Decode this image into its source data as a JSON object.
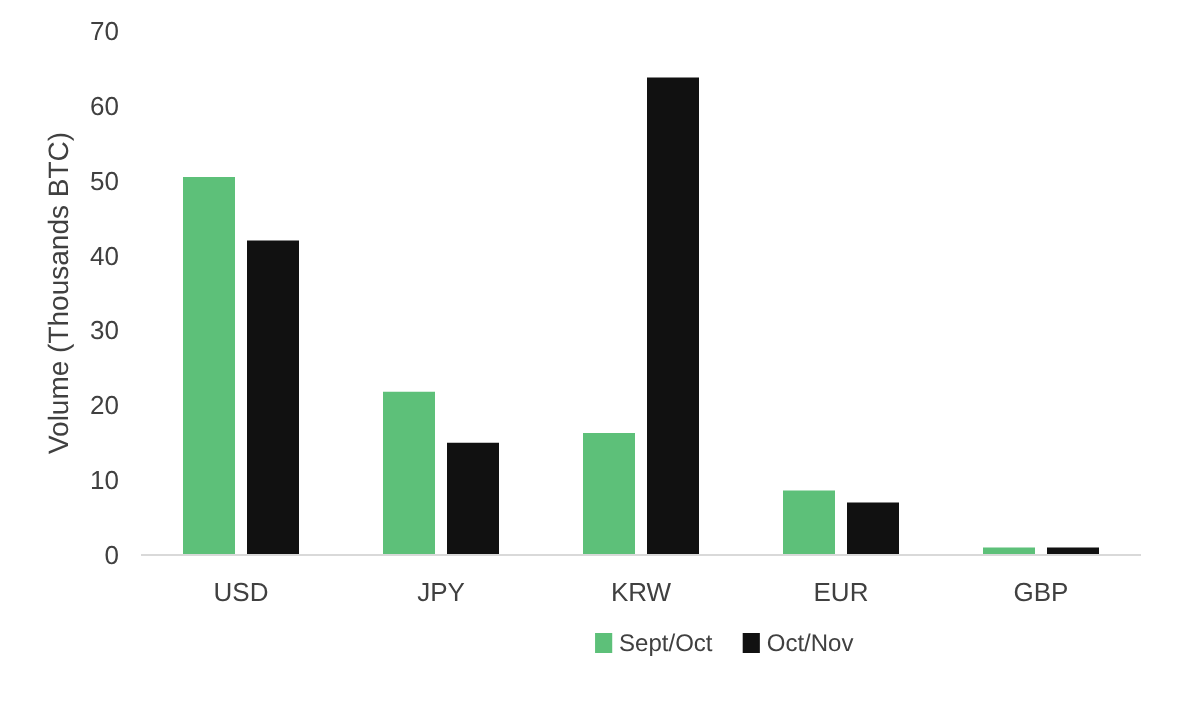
{
  "chart_data": {
    "type": "bar",
    "ylabel": "Volume (Thousands BTC)",
    "categories": [
      "USD",
      "JPY",
      "KRW",
      "EUR",
      "GBP"
    ],
    "series": [
      {
        "name": "Sept/Oct",
        "color": "#5dc079",
        "values": [
          50.5,
          21.8,
          16.3,
          8.6,
          1
        ]
      },
      {
        "name": "Oct/Nov",
        "color": "#111111",
        "values": [
          42,
          15,
          63.8,
          7,
          1
        ]
      }
    ],
    "ylim": [
      0,
      70
    ],
    "yticks": [
      0,
      10,
      20,
      30,
      40,
      50,
      60,
      70
    ],
    "grid": false,
    "legend": "bottom"
  }
}
